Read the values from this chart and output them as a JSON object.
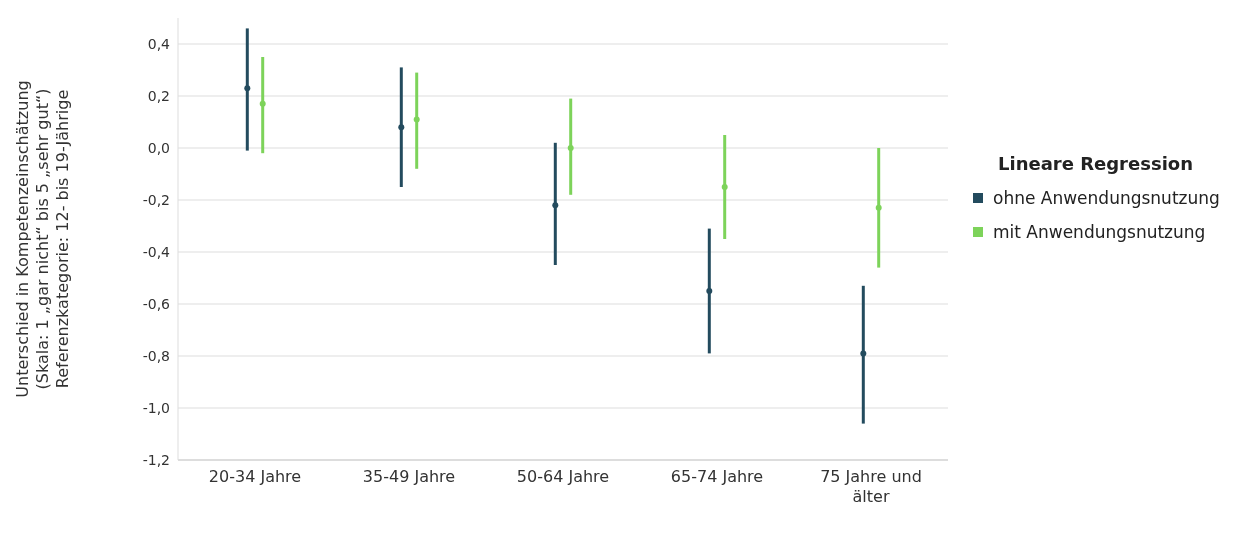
{
  "chart_data": {
    "type": "scatter",
    "ylabel": "Unterschied in Kompetenzeinschätzung\n(Skala: 1 „gar nicht“ bis 5 „sehr gut“)\nReferenzkategorie: 12- bis 19-Jährige",
    "legend_title": "Lineare Regression",
    "categories": [
      "20-34 Jahre",
      "35-49 Jahre",
      "50-64 Jahre",
      "65-74 Jahre",
      "75 Jahre und älter"
    ],
    "series": [
      {
        "name": "ohne Anwendungsnutzung",
        "color": "#234b5e",
        "values": [
          0.23,
          0.08,
          -0.22,
          -0.55,
          -0.79
        ],
        "errors": [
          [
            -0.01,
            0.46
          ],
          [
            -0.15,
            0.31
          ],
          [
            -0.45,
            0.02
          ],
          [
            -0.79,
            -0.31
          ],
          [
            -1.06,
            -0.53
          ]
        ]
      },
      {
        "name": "mit Anwendungsnutzung",
        "color": "#7dd35a",
        "values": [
          0.17,
          0.11,
          0.0,
          -0.15,
          -0.23
        ],
        "errors": [
          [
            -0.02,
            0.35
          ],
          [
            -0.08,
            0.29
          ],
          [
            -0.18,
            0.19
          ],
          [
            -0.35,
            0.05
          ],
          [
            -0.46,
            0.0
          ]
        ]
      }
    ],
    "ylim": [
      -1.2,
      0.5
    ],
    "yticks": [
      {
        "value": -1.2,
        "label": "-1,2"
      },
      {
        "value": -1.0,
        "label": "-1,0"
      },
      {
        "value": -0.8,
        "label": "-0,8"
      },
      {
        "value": -0.6,
        "label": "-0,6"
      },
      {
        "value": -0.4,
        "label": "-0,4"
      },
      {
        "value": -0.2,
        "label": "-0,2"
      },
      {
        "value": 0,
        "label": "0,0"
      },
      {
        "value": 0.2,
        "label": "0,2"
      },
      {
        "value": 0.4,
        "label": "0,4"
      }
    ],
    "grid": "y",
    "legend": "right",
    "marker": "circle"
  }
}
